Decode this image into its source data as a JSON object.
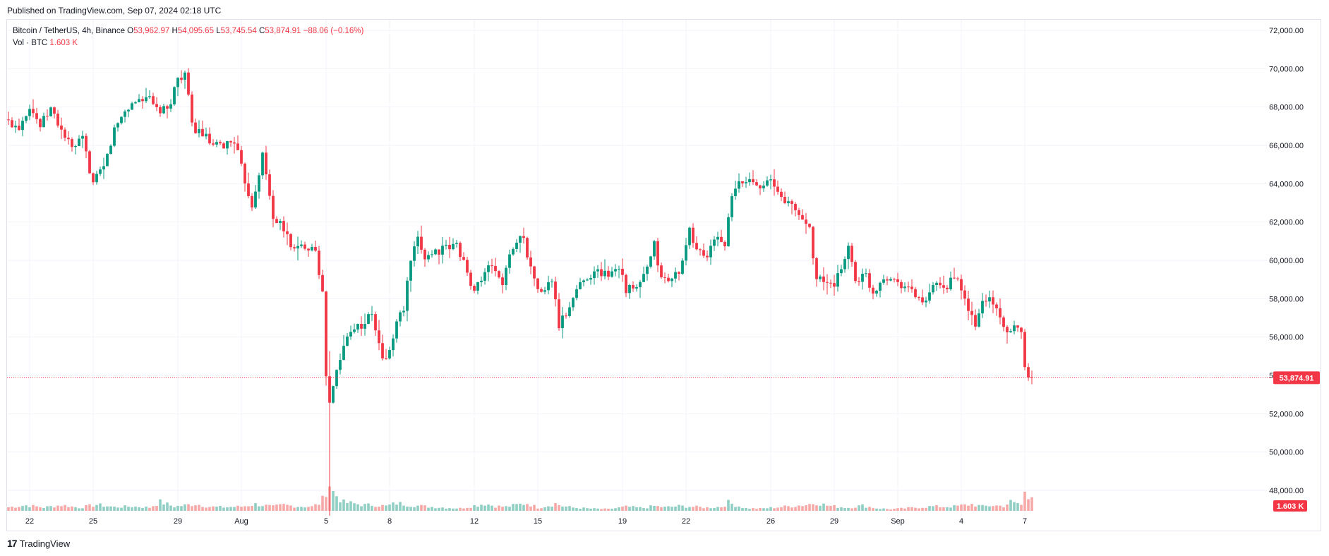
{
  "published": "Published on TradingView.com, Sep 07, 2024 02:18 UTC",
  "legend": {
    "symbol": "Bitcoin / TetherUS, 4h, Binance",
    "o_label": "O",
    "o": "53,962.97",
    "h_label": "H",
    "h": "54,095.65",
    "l_label": "L",
    "l": "53,745.54",
    "c_label": "C",
    "c": "53,874.91",
    "change": "−88.06 (−0.16%)",
    "vol_label": "Vol · BTC",
    "vol": "1.603 K"
  },
  "footer": {
    "brand": "TradingView"
  },
  "colors": {
    "up": "#089981",
    "down": "#f23645",
    "up_vol": "#90cfc3",
    "down_vol": "#f7a9a7",
    "grid": "#f0f3fa"
  },
  "chart_data": {
    "type": "candlestick",
    "symbol": "Bitcoin / TetherUS",
    "interval": "4h",
    "exchange": "Binance",
    "last_price": 53874.91,
    "last_price_label": "53,874.91",
    "last_volume_label": "1.603 K",
    "ylim": [
      47000,
      72500
    ],
    "y_ticks": [
      "72,000.00",
      "70,000.00",
      "68,000.00",
      "66,000.00",
      "64,000.00",
      "62,000.00",
      "60,000.00",
      "58,000.00",
      "56,000.00",
      "54,000.00",
      "52,000.00",
      "50,000.00",
      "48,000.00"
    ],
    "y_tick_values": [
      72000,
      70000,
      68000,
      66000,
      64000,
      62000,
      60000,
      58000,
      56000,
      54000,
      52000,
      50000,
      48000
    ],
    "x_ticks": [
      "22",
      "25",
      "29",
      "Aug",
      "5",
      "8",
      "12",
      "15",
      "19",
      "22",
      "26",
      "29",
      "Sep",
      "4",
      "7"
    ],
    "x_tick_bar_index": [
      6,
      24,
      48,
      66,
      90,
      108,
      132,
      150,
      174,
      192,
      216,
      234,
      252,
      270,
      288
    ],
    "ohlc_path": [
      [
        0,
        67200
      ],
      [
        3,
        67000
      ],
      [
        6,
        68100
      ],
      [
        9,
        67000
      ],
      [
        12,
        67900
      ],
      [
        15,
        66800
      ],
      [
        18,
        65800
      ],
      [
        21,
        66300
      ],
      [
        24,
        64000
      ],
      [
        27,
        64800
      ],
      [
        30,
        66800
      ],
      [
        33,
        67800
      ],
      [
        36,
        68300
      ],
      [
        39,
        68600
      ],
      [
        42,
        67800
      ],
      [
        45,
        67800
      ],
      [
        48,
        69500
      ],
      [
        50,
        69800
      ],
      [
        52,
        67000
      ],
      [
        55,
        66600
      ],
      [
        58,
        65900
      ],
      [
        61,
        66000
      ],
      [
        64,
        66300
      ],
      [
        66,
        64800
      ],
      [
        69,
        62900
      ],
      [
        72,
        65500
      ],
      [
        75,
        62300
      ],
      [
        78,
        61600
      ],
      [
        81,
        60500
      ],
      [
        84,
        60800
      ],
      [
        87,
        60700
      ],
      [
        89,
        58200
      ],
      [
        90,
        54000
      ],
      [
        91,
        52500
      ],
      [
        93,
        54200
      ],
      [
        95,
        55500
      ],
      [
        97,
        56500
      ],
      [
        100,
        56600
      ],
      [
        103,
        57200
      ],
      [
        106,
        54800
      ],
      [
        108,
        55200
      ],
      [
        110,
        56800
      ],
      [
        112,
        57500
      ],
      [
        114,
        60000
      ],
      [
        116,
        61000
      ],
      [
        118,
        60200
      ],
      [
        121,
        60500
      ],
      [
        124,
        60600
      ],
      [
        127,
        60800
      ],
      [
        129,
        60000
      ],
      [
        131,
        58500
      ],
      [
        134,
        59000
      ],
      [
        137,
        59800
      ],
      [
        140,
        58800
      ],
      [
        143,
        60800
      ],
      [
        146,
        61300
      ],
      [
        148,
        59500
      ],
      [
        151,
        58200
      ],
      [
        154,
        59000
      ],
      [
        156,
        56600
      ],
      [
        158,
        57200
      ],
      [
        161,
        58500
      ],
      [
        164,
        59200
      ],
      [
        167,
        59400
      ],
      [
        170,
        59300
      ],
      [
        173,
        59800
      ],
      [
        175,
        58500
      ],
      [
        178,
        58500
      ],
      [
        181,
        59500
      ],
      [
        183,
        60800
      ],
      [
        185,
        59000
      ],
      [
        188,
        59000
      ],
      [
        191,
        59800
      ],
      [
        193,
        61500
      ],
      [
        195,
        60600
      ],
      [
        198,
        60200
      ],
      [
        201,
        61300
      ],
      [
        203,
        60800
      ],
      [
        205,
        63300
      ],
      [
        207,
        64000
      ],
      [
        210,
        64200
      ],
      [
        213,
        64000
      ],
      [
        216,
        64100
      ],
      [
        218,
        63500
      ],
      [
        221,
        63000
      ],
      [
        224,
        62400
      ],
      [
        227,
        61700
      ],
      [
        229,
        59000
      ],
      [
        231,
        59000
      ],
      [
        234,
        58500
      ],
      [
        236,
        59700
      ],
      [
        238,
        60700
      ],
      [
        240,
        59000
      ],
      [
        243,
        59200
      ],
      [
        245,
        58300
      ],
      [
        248,
        59200
      ],
      [
        251,
        59000
      ],
      [
        254,
        58700
      ],
      [
        257,
        58200
      ],
      [
        260,
        57700
      ],
      [
        262,
        58700
      ],
      [
        265,
        58400
      ],
      [
        268,
        59300
      ],
      [
        270,
        58300
      ],
      [
        272,
        57500
      ],
      [
        274,
        56500
      ],
      [
        276,
        57900
      ],
      [
        278,
        58000
      ],
      [
        281,
        57200
      ],
      [
        283,
        56000
      ],
      [
        286,
        56600
      ],
      [
        287,
        56500
      ],
      [
        288,
        54300
      ],
      [
        289,
        54100
      ],
      [
        290,
        53875
      ]
    ],
    "volume_path": [
      [
        0,
        420
      ],
      [
        5,
        650
      ],
      [
        10,
        400
      ],
      [
        15,
        680
      ],
      [
        20,
        380
      ],
      [
        25,
        720
      ],
      [
        30,
        450
      ],
      [
        35,
        520
      ],
      [
        40,
        400
      ],
      [
        43,
        1050
      ],
      [
        47,
        500
      ],
      [
        50,
        650
      ],
      [
        53,
        820
      ],
      [
        57,
        480
      ],
      [
        61,
        430
      ],
      [
        66,
        500
      ],
      [
        70,
        780
      ],
      [
        75,
        500
      ],
      [
        78,
        700
      ],
      [
        82,
        520
      ],
      [
        86,
        500
      ],
      [
        88,
        850
      ],
      [
        89,
        1350
      ],
      [
        90,
        2500
      ],
      [
        91,
        3200
      ],
      [
        92,
        2200
      ],
      [
        93,
        1800
      ],
      [
        95,
        1000
      ],
      [
        98,
        850
      ],
      [
        101,
        680
      ],
      [
        104,
        700
      ],
      [
        107,
        560
      ],
      [
        110,
        900
      ],
      [
        112,
        800
      ],
      [
        114,
        680
      ],
      [
        116,
        600
      ],
      [
        120,
        460
      ],
      [
        124,
        380
      ],
      [
        128,
        300
      ],
      [
        132,
        620
      ],
      [
        135,
        850
      ],
      [
        138,
        560
      ],
      [
        141,
        480
      ],
      [
        144,
        700
      ],
      [
        147,
        900
      ],
      [
        150,
        380
      ],
      [
        153,
        620
      ],
      [
        155,
        860
      ],
      [
        157,
        560
      ],
      [
        160,
        380
      ],
      [
        165,
        260
      ],
      [
        170,
        200
      ],
      [
        175,
        480
      ],
      [
        180,
        340
      ],
      [
        183,
        560
      ],
      [
        186,
        420
      ],
      [
        190,
        560
      ],
      [
        194,
        480
      ],
      [
        198,
        380
      ],
      [
        202,
        480
      ],
      [
        204,
        980
      ],
      [
        206,
        680
      ],
      [
        209,
        300
      ],
      [
        213,
        260
      ],
      [
        218,
        430
      ],
      [
        222,
        560
      ],
      [
        226,
        720
      ],
      [
        229,
        980
      ],
      [
        232,
        620
      ],
      [
        235,
        480
      ],
      [
        238,
        380
      ],
      [
        242,
        620
      ],
      [
        246,
        300
      ],
      [
        250,
        200
      ],
      [
        254,
        300
      ],
      [
        258,
        420
      ],
      [
        262,
        520
      ],
      [
        265,
        480
      ],
      [
        268,
        520
      ],
      [
        270,
        620
      ],
      [
        273,
        780
      ],
      [
        276,
        520
      ],
      [
        279,
        640
      ],
      [
        282,
        560
      ],
      [
        284,
        1050
      ],
      [
        285,
        880
      ],
      [
        286,
        900
      ],
      [
        287,
        700
      ],
      [
        288,
        2100
      ],
      [
        289,
        1500
      ],
      [
        290,
        1603
      ]
    ],
    "volume_ylim": [
      0,
      7500
    ]
  }
}
